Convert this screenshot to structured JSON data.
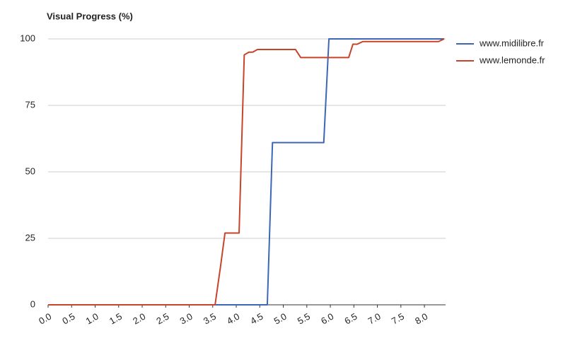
{
  "chart_data": {
    "type": "line",
    "title": "Visual Progress (%)",
    "series": [
      {
        "name": "www.midilibre.fr",
        "color": "#3d67b5",
        "x": [
          0,
          4.66,
          4.77,
          5.86,
          5.97,
          8.42
        ],
        "values": [
          0,
          0,
          61,
          61,
          100,
          100
        ]
      },
      {
        "name": "www.lemonde.fr",
        "color": "#c7442a",
        "x": [
          0,
          3.55,
          3.67,
          3.76,
          4.06,
          4.17,
          4.27,
          4.35,
          4.45,
          5.26,
          5.37,
          6.39,
          6.48,
          6.57,
          6.69,
          8.3,
          8.42
        ],
        "values": [
          0,
          0,
          15,
          27,
          27,
          94,
          95,
          95,
          96,
          96,
          93,
          93,
          98,
          98,
          99,
          99,
          100
        ]
      }
    ],
    "xlim": [
      0,
      8.45
    ],
    "xticks": [
      {
        "value": 0,
        "label": "0.0"
      },
      0.5,
      {
        "value": 1,
        "label": "1.0"
      },
      1.5,
      {
        "value": 2,
        "label": "2.0"
      },
      2.5,
      {
        "value": 3,
        "label": "3.0"
      },
      3.5,
      {
        "value": 4,
        "label": "4.0"
      },
      4.5,
      {
        "value": 5,
        "label": "5.0"
      },
      5.5,
      {
        "value": 6,
        "label": "6.0"
      },
      6.5,
      {
        "value": 7,
        "label": "7.0"
      },
      7.5,
      {
        "value": 8,
        "label": "8.0"
      }
    ],
    "ylim": [
      0,
      100
    ],
    "yticks": [
      0,
      25,
      50,
      75,
      100
    ],
    "grid": true,
    "legend": "right"
  }
}
